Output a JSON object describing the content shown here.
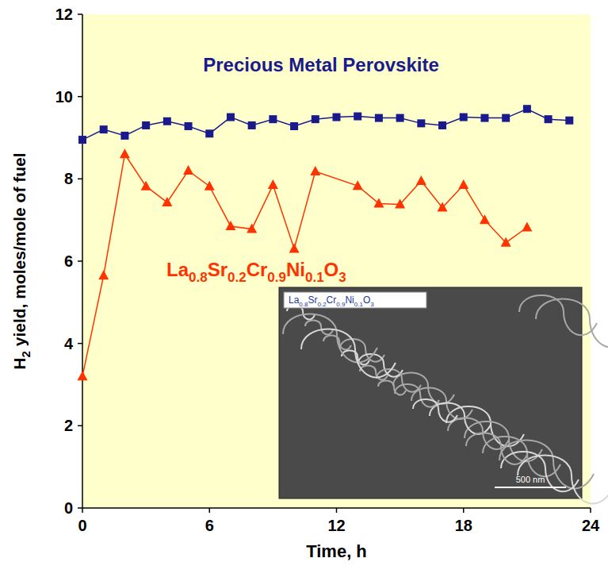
{
  "chart_data": {
    "type": "line",
    "x_label": "Time, h",
    "y_label": "H2 yield, moles/mole of fuel",
    "xlim": [
      0,
      24
    ],
    "ylim": [
      0,
      12
    ],
    "xticks": [
      0,
      6,
      12,
      18,
      24
    ],
    "yticks": [
      0,
      2,
      4,
      6,
      8,
      10,
      12
    ],
    "grid": false,
    "series": [
      {
        "name": "Precious Metal Perovskite",
        "color": "#1a1a8c",
        "marker": "square",
        "line_style": "solid",
        "x": [
          0,
          1,
          2,
          3,
          4,
          5,
          6,
          7,
          8,
          9,
          10,
          11,
          12,
          13,
          14,
          15,
          16,
          17,
          18,
          19,
          20,
          21,
          22,
          23
        ],
        "values": [
          8.95,
          9.2,
          9.05,
          9.3,
          9.4,
          9.28,
          9.1,
          9.5,
          9.3,
          9.45,
          9.28,
          9.45,
          9.5,
          9.52,
          9.48,
          9.48,
          9.35,
          9.3,
          9.5,
          9.48,
          9.48,
          9.7,
          9.45,
          9.42
        ]
      },
      {
        "name": "La0.8Sr0.2Cr0.9Ni0.1O3",
        "color": "#ff3300",
        "marker": "triangle",
        "line_style": "solid",
        "x": [
          0,
          1,
          2,
          3,
          4,
          5,
          6,
          7,
          8,
          9,
          10,
          11,
          13,
          14,
          15,
          16,
          17,
          18,
          19,
          20,
          21
        ],
        "values": [
          3.2,
          5.65,
          8.6,
          7.82,
          7.43,
          8.2,
          7.82,
          6.85,
          6.78,
          7.85,
          6.3,
          8.18,
          7.83,
          7.4,
          7.38,
          7.95,
          7.3,
          7.85,
          7.0,
          6.45,
          6.82
        ]
      }
    ],
    "annotations": [
      "La0.8Sr0.2Cr0.9Ni0.1O3",
      "500 nm"
    ]
  }
}
